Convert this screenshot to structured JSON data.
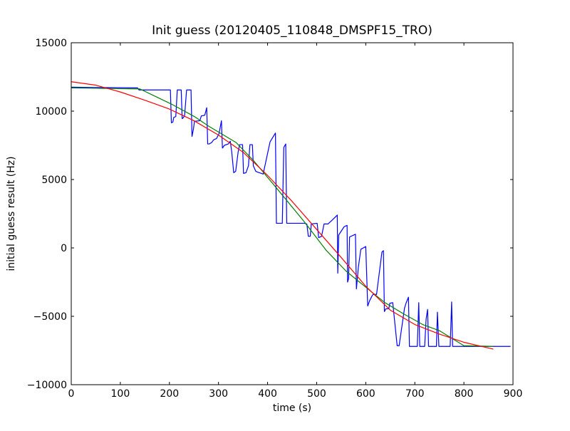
{
  "chart_data": {
    "type": "line",
    "title": "Init guess (20120405_110848_DMSPF15_TRO)",
    "xlabel": "time (s)",
    "ylabel": "initial guess result (Hz)",
    "xlim": [
      0,
      900
    ],
    "ylim": [
      -10000,
      15000
    ],
    "xticks": [
      0,
      100,
      200,
      300,
      400,
      500,
      600,
      700,
      800,
      900
    ],
    "yticks": [
      -10000,
      -5000,
      0,
      5000,
      10000,
      15000
    ],
    "xtick_labels": [
      "0",
      "100",
      "200",
      "300",
      "400",
      "500",
      "600",
      "700",
      "800",
      "900"
    ],
    "ytick_labels": [
      "−10000",
      "−5000",
      "0",
      "5000",
      "10000",
      "15000"
    ],
    "grid": false,
    "series": [
      {
        "color": "#0000ff",
        "points": [
          [
            0,
            11750
          ],
          [
            135,
            11700
          ],
          [
            138,
            11550
          ],
          [
            202,
            11550
          ],
          [
            204,
            9150
          ],
          [
            207,
            9200
          ],
          [
            209,
            9550
          ],
          [
            213,
            9600
          ],
          [
            216,
            11550
          ],
          [
            224,
            11550
          ],
          [
            226,
            9450
          ],
          [
            229,
            9550
          ],
          [
            231,
            9700
          ],
          [
            235,
            11550
          ],
          [
            244,
            11550
          ],
          [
            246,
            8150
          ],
          [
            249,
            8700
          ],
          [
            251,
            9250
          ],
          [
            262,
            9300
          ],
          [
            265,
            9650
          ],
          [
            272,
            9700
          ],
          [
            276,
            10250
          ],
          [
            278,
            7600
          ],
          [
            281,
            7600
          ],
          [
            286,
            7700
          ],
          [
            290,
            7900
          ],
          [
            296,
            8000
          ],
          [
            301,
            8350
          ],
          [
            306,
            9300
          ],
          [
            308,
            7300
          ],
          [
            312,
            7500
          ],
          [
            320,
            7600
          ],
          [
            324,
            7800
          ],
          [
            327,
            7000
          ],
          [
            331,
            5500
          ],
          [
            335,
            5600
          ],
          [
            340,
            7000
          ],
          [
            343,
            7550
          ],
          [
            349,
            7550
          ],
          [
            351,
            5450
          ],
          [
            356,
            5500
          ],
          [
            361,
            6000
          ],
          [
            364,
            7550
          ],
          [
            369,
            7550
          ],
          [
            371,
            6000
          ],
          [
            376,
            5600
          ],
          [
            379,
            5550
          ],
          [
            387,
            5450
          ],
          [
            391,
            5400
          ],
          [
            405,
            7750
          ],
          [
            416,
            8400
          ],
          [
            418,
            1800
          ],
          [
            430,
            1800
          ],
          [
            433,
            7350
          ],
          [
            437,
            7600
          ],
          [
            439,
            1800
          ],
          [
            475,
            1800
          ],
          [
            480,
            1750
          ],
          [
            483,
            850
          ],
          [
            487,
            850
          ],
          [
            489,
            1750
          ],
          [
            501,
            1800
          ],
          [
            504,
            750
          ],
          [
            510,
            850
          ],
          [
            515,
            1750
          ],
          [
            523,
            1750
          ],
          [
            532,
            2050
          ],
          [
            542,
            2400
          ],
          [
            543,
            -1850
          ],
          [
            545,
            950
          ],
          [
            556,
            1550
          ],
          [
            562,
            1650
          ],
          [
            563,
            -2500
          ],
          [
            565,
            -2250
          ],
          [
            567,
            800
          ],
          [
            579,
            1000
          ],
          [
            581,
            -3000
          ],
          [
            585,
            -1400
          ],
          [
            590,
            -100
          ],
          [
            600,
            100
          ],
          [
            604,
            -4250
          ],
          [
            608,
            -3850
          ],
          [
            613,
            -3500
          ],
          [
            615,
            -3400
          ],
          [
            622,
            -3400
          ],
          [
            633,
            -300
          ],
          [
            636,
            -200
          ],
          [
            638,
            -4650
          ],
          [
            641,
            -4450
          ],
          [
            647,
            -4450
          ],
          [
            649,
            -4050
          ],
          [
            655,
            -4000
          ],
          [
            664,
            -7150
          ],
          [
            668,
            -7150
          ],
          [
            679,
            -4400
          ],
          [
            682,
            -4050
          ],
          [
            687,
            -3600
          ],
          [
            689,
            -7200
          ],
          [
            705,
            -7200
          ],
          [
            708,
            -4000
          ],
          [
            710,
            -7200
          ],
          [
            720,
            -7200
          ],
          [
            723,
            -5200
          ],
          [
            726,
            -4500
          ],
          [
            728,
            -7200
          ],
          [
            744,
            -7200
          ],
          [
            746,
            -4700
          ],
          [
            749,
            -7200
          ],
          [
            772,
            -7200
          ],
          [
            775,
            -3950
          ],
          [
            777,
            -7200
          ],
          [
            830,
            -7200
          ],
          [
            860,
            -7200
          ],
          [
            878,
            -7200
          ],
          [
            895,
            -7200
          ]
        ]
      },
      {
        "color": "#008000",
        "points": [
          [
            0,
            11700
          ],
          [
            140,
            11620
          ],
          [
            205,
            10500
          ],
          [
            251,
            9600
          ],
          [
            280,
            8900
          ],
          [
            336,
            7700
          ],
          [
            371,
            6400
          ],
          [
            420,
            4300
          ],
          [
            475,
            1900
          ],
          [
            520,
            -200
          ],
          [
            560,
            -1700
          ],
          [
            601,
            -2900
          ],
          [
            639,
            -4000
          ],
          [
            676,
            -4800
          ],
          [
            716,
            -5600
          ],
          [
            750,
            -6050
          ],
          [
            800,
            -7150
          ],
          [
            860,
            -7200
          ]
        ]
      },
      {
        "color": "#ff0000",
        "points": [
          [
            0,
            12150
          ],
          [
            50,
            11900
          ],
          [
            100,
            11400
          ],
          [
            150,
            10800
          ],
          [
            200,
            10150
          ],
          [
            250,
            9300
          ],
          [
            300,
            8250
          ],
          [
            350,
            7000
          ],
          [
            400,
            5300
          ],
          [
            450,
            3400
          ],
          [
            500,
            1350
          ],
          [
            550,
            -700
          ],
          [
            600,
            -2800
          ],
          [
            650,
            -4550
          ],
          [
            700,
            -5600
          ],
          [
            750,
            -6300
          ],
          [
            800,
            -6900
          ],
          [
            860,
            -7400
          ]
        ]
      }
    ]
  }
}
